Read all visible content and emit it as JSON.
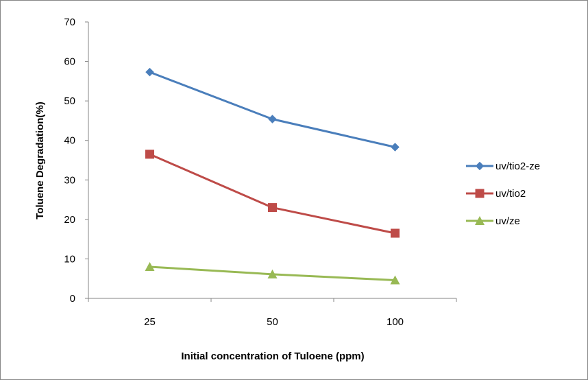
{
  "chart_data": {
    "type": "line",
    "title": "",
    "xlabel": "Initial concentration of Tuloene (ppm)",
    "ylabel": "Toluene Degradation(%)",
    "categories": [
      "25",
      "50",
      "100"
    ],
    "ylim": [
      0,
      70
    ],
    "yticks": [
      0,
      10,
      20,
      30,
      40,
      50,
      60,
      70
    ],
    "grid": false,
    "legend_position": "right",
    "series": [
      {
        "name": "uv/tio2-ze",
        "values": [
          57.3,
          45.4,
          38.3
        ],
        "color": "#4a7ebb",
        "marker": "diamond"
      },
      {
        "name": "uv/tio2",
        "values": [
          36.5,
          23.0,
          16.5
        ],
        "color": "#be4b48",
        "marker": "square"
      },
      {
        "name": "uv/ze",
        "values": [
          8.0,
          6.1,
          4.6
        ],
        "color": "#98b954",
        "marker": "triangle"
      }
    ]
  }
}
